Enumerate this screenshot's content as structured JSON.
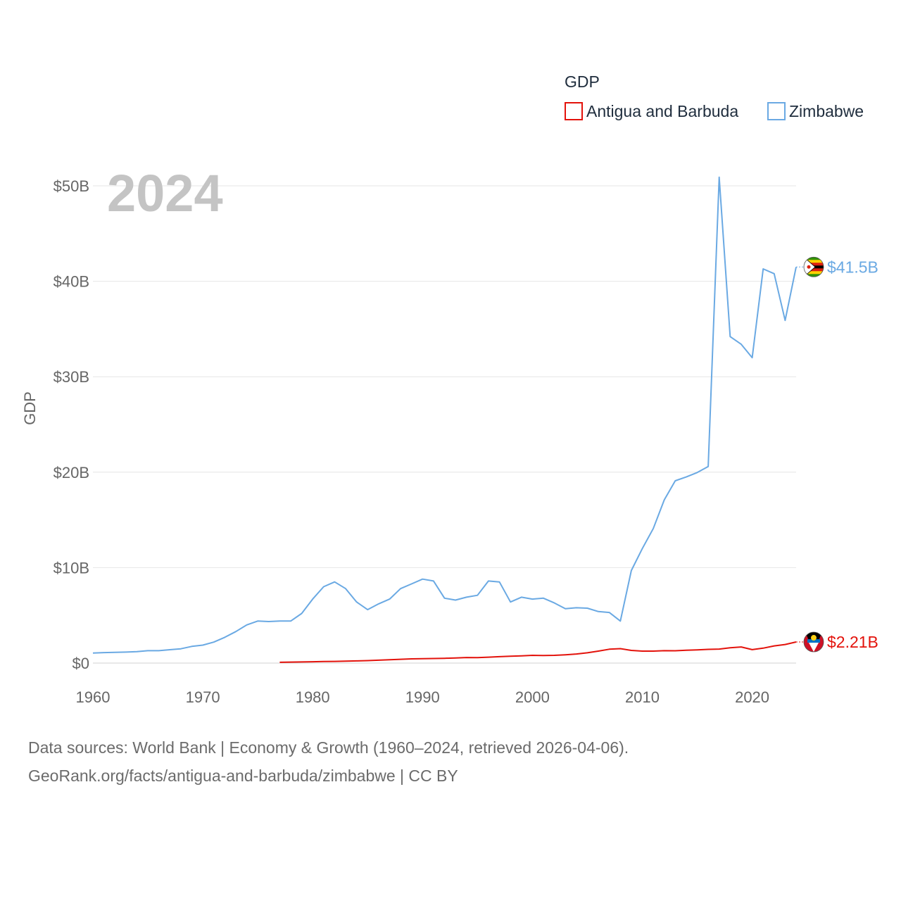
{
  "chart_data": {
    "type": "line",
    "title": "",
    "ylabel": "GDP",
    "xlabel": "",
    "year_display": "2024",
    "legend_title": "GDP",
    "xlim": [
      1960,
      2024
    ],
    "ylim": [
      0,
      50
    ],
    "y_unit": "billion USD",
    "x_ticks": [
      1960,
      1970,
      1980,
      1990,
      2000,
      2010,
      2020
    ],
    "x_tick_labels": [
      "1960",
      "1970",
      "1980",
      "1990",
      "2000",
      "2010",
      "2020"
    ],
    "y_ticks": [
      0,
      10,
      20,
      30,
      40,
      50
    ],
    "y_tick_labels": [
      "$0",
      "$10B",
      "$20B",
      "$30B",
      "$40B",
      "$50B"
    ],
    "series": [
      {
        "name": "Antigua and Barbuda",
        "color": "#e3120b",
        "end_label": "$2.21B",
        "flag_icon": "antigua-and-barbuda-flag-icon",
        "x": [
          1977,
          1978,
          1979,
          1980,
          1981,
          1982,
          1983,
          1984,
          1985,
          1986,
          1987,
          1988,
          1989,
          1990,
          1991,
          1992,
          1993,
          1994,
          1995,
          1996,
          1997,
          1998,
          1999,
          2000,
          2001,
          2002,
          2003,
          2004,
          2005,
          2006,
          2007,
          2008,
          2009,
          2010,
          2011,
          2012,
          2013,
          2014,
          2015,
          2016,
          2017,
          2018,
          2019,
          2020,
          2021,
          2022,
          2023,
          2024
        ],
        "values": [
          0.08,
          0.1,
          0.12,
          0.14,
          0.16,
          0.18,
          0.2,
          0.23,
          0.26,
          0.3,
          0.35,
          0.4,
          0.44,
          0.46,
          0.48,
          0.5,
          0.54,
          0.58,
          0.57,
          0.62,
          0.67,
          0.72,
          0.76,
          0.81,
          0.8,
          0.81,
          0.87,
          0.95,
          1.08,
          1.25,
          1.45,
          1.51,
          1.33,
          1.25,
          1.25,
          1.3,
          1.29,
          1.34,
          1.39,
          1.44,
          1.47,
          1.6,
          1.69,
          1.41,
          1.56,
          1.8,
          1.95,
          2.21
        ]
      },
      {
        "name": "Zimbabwe",
        "color": "#6aa9e3",
        "end_label": "$41.5B",
        "flag_icon": "zimbabwe-flag-icon",
        "x": [
          1960,
          1961,
          1962,
          1963,
          1964,
          1965,
          1966,
          1967,
          1968,
          1969,
          1970,
          1971,
          1972,
          1973,
          1974,
          1975,
          1976,
          1977,
          1978,
          1979,
          1980,
          1981,
          1982,
          1983,
          1984,
          1985,
          1986,
          1987,
          1988,
          1989,
          1990,
          1991,
          1992,
          1993,
          1994,
          1995,
          1996,
          1997,
          1998,
          1999,
          2000,
          2001,
          2002,
          2003,
          2004,
          2005,
          2006,
          2007,
          2008,
          2009,
          2010,
          2011,
          2012,
          2013,
          2014,
          2015,
          2016,
          2017,
          2018,
          2019,
          2020,
          2021,
          2022,
          2023,
          2024
        ],
        "values": [
          1.05,
          1.1,
          1.12,
          1.15,
          1.2,
          1.3,
          1.3,
          1.4,
          1.5,
          1.75,
          1.88,
          2.2,
          2.7,
          3.3,
          4.0,
          4.4,
          4.35,
          4.4,
          4.4,
          5.2,
          6.7,
          8.0,
          8.5,
          7.8,
          6.4,
          5.6,
          6.2,
          6.7,
          7.8,
          8.3,
          8.8,
          8.6,
          6.8,
          6.6,
          6.9,
          7.1,
          8.6,
          8.5,
          6.4,
          6.9,
          6.7,
          6.8,
          6.3,
          5.7,
          5.8,
          5.75,
          5.4,
          5.3,
          4.4,
          9.7,
          12.0,
          14.1,
          17.1,
          19.1,
          19.5,
          19.96,
          20.6,
          50.9,
          34.2,
          33.4,
          32.0,
          41.3,
          40.8,
          35.9,
          41.5
        ]
      }
    ]
  },
  "footer": {
    "line1": "Data sources: World Bank | Economy & Growth (1960–2024, retrieved 2026-04-06).",
    "line2": "GeoRank.org/facts/antigua-and-barbuda/zimbabwe | CC BY"
  }
}
